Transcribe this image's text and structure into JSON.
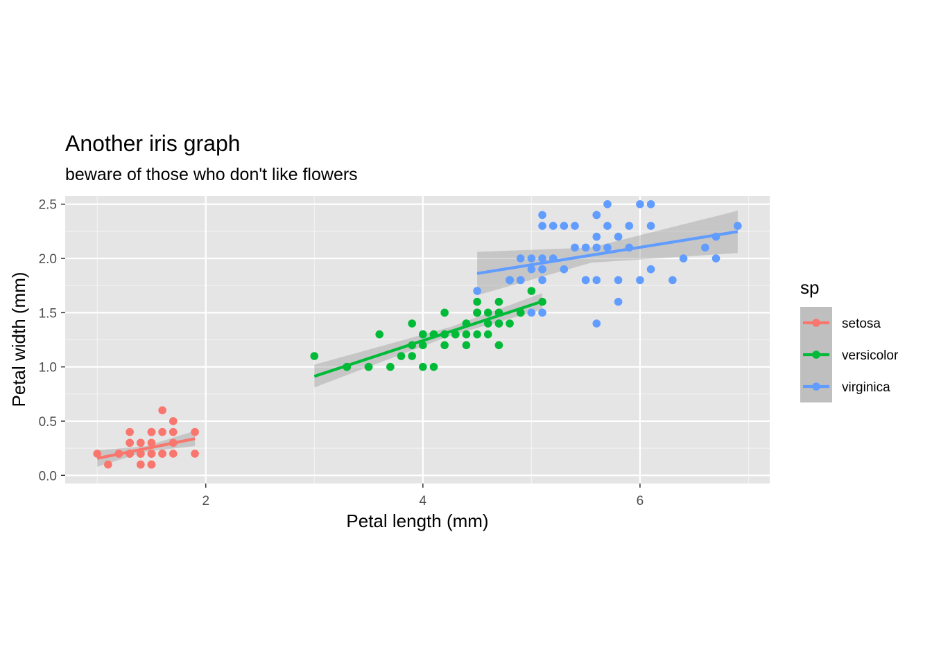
{
  "chart_data": {
    "type": "scatter",
    "title": "Another iris graph",
    "subtitle": "beware of those who don't like flowers",
    "xlabel": "Petal length (mm)",
    "ylabel": "Petal width (mm)",
    "xlim": [
      0.705,
      7.195
    ],
    "ylim": [
      -0.075,
      2.575
    ],
    "x_major_ticks": [
      2,
      4,
      6
    ],
    "x_minor_ticks": [
      1,
      3,
      5,
      7
    ],
    "y_major_ticks": [
      0.0,
      0.5,
      1.0,
      1.5,
      2.0,
      2.5
    ],
    "y_minor_ticks": [
      0.25,
      0.75,
      1.25,
      1.75,
      2.25
    ],
    "x_tick_labels": [
      "2",
      "4",
      "6"
    ],
    "y_tick_labels": [
      "0.0",
      "0.5",
      "1.0",
      "1.5",
      "2.0",
      "2.5"
    ],
    "grid": true,
    "background": "#e5e5e5",
    "legend": {
      "title": "sp",
      "position": "right"
    },
    "series": [
      {
        "name": "setosa",
        "color": "#f8766d",
        "points": [
          [
            1.4,
            0.2
          ],
          [
            1.4,
            0.2
          ],
          [
            1.3,
            0.2
          ],
          [
            1.5,
            0.2
          ],
          [
            1.4,
            0.2
          ],
          [
            1.7,
            0.4
          ],
          [
            1.4,
            0.3
          ],
          [
            1.5,
            0.2
          ],
          [
            1.4,
            0.2
          ],
          [
            1.5,
            0.1
          ],
          [
            1.5,
            0.2
          ],
          [
            1.6,
            0.2
          ],
          [
            1.4,
            0.1
          ],
          [
            1.1,
            0.1
          ],
          [
            1.2,
            0.2
          ],
          [
            1.5,
            0.4
          ],
          [
            1.3,
            0.4
          ],
          [
            1.4,
            0.3
          ],
          [
            1.7,
            0.3
          ],
          [
            1.5,
            0.3
          ],
          [
            1.7,
            0.2
          ],
          [
            1.5,
            0.4
          ],
          [
            1.0,
            0.2
          ],
          [
            1.7,
            0.5
          ],
          [
            1.9,
            0.2
          ],
          [
            1.6,
            0.2
          ],
          [
            1.6,
            0.4
          ],
          [
            1.5,
            0.2
          ],
          [
            1.4,
            0.2
          ],
          [
            1.6,
            0.2
          ],
          [
            1.6,
            0.2
          ],
          [
            1.5,
            0.4
          ],
          [
            1.5,
            0.1
          ],
          [
            1.4,
            0.2
          ],
          [
            1.5,
            0.2
          ],
          [
            1.2,
            0.2
          ],
          [
            1.3,
            0.2
          ],
          [
            1.4,
            0.1
          ],
          [
            1.3,
            0.2
          ],
          [
            1.5,
            0.2
          ],
          [
            1.3,
            0.3
          ],
          [
            1.3,
            0.3
          ],
          [
            1.3,
            0.2
          ],
          [
            1.6,
            0.6
          ],
          [
            1.9,
            0.4
          ],
          [
            1.4,
            0.3
          ],
          [
            1.6,
            0.2
          ],
          [
            1.4,
            0.2
          ],
          [
            1.5,
            0.2
          ],
          [
            1.4,
            0.2
          ]
        ],
        "fit": {
          "x": [
            1.0,
            1.9
          ],
          "y": [
            0.157,
            0.338
          ]
        },
        "ci": {
          "x": [
            1.0,
            1.45,
            1.9
          ],
          "lower": [
            0.08,
            0.22,
            0.27
          ],
          "upper": [
            0.23,
            0.27,
            0.41
          ]
        }
      },
      {
        "name": "versicolor",
        "color": "#00ba38",
        "points": [
          [
            4.7,
            1.4
          ],
          [
            4.5,
            1.5
          ],
          [
            4.9,
            1.5
          ],
          [
            4.0,
            1.3
          ],
          [
            4.6,
            1.5
          ],
          [
            4.5,
            1.3
          ],
          [
            4.7,
            1.6
          ],
          [
            3.3,
            1.0
          ],
          [
            4.6,
            1.3
          ],
          [
            3.9,
            1.4
          ],
          [
            3.5,
            1.0
          ],
          [
            4.2,
            1.5
          ],
          [
            4.0,
            1.0
          ],
          [
            4.7,
            1.4
          ],
          [
            3.6,
            1.3
          ],
          [
            4.4,
            1.4
          ],
          [
            4.5,
            1.5
          ],
          [
            4.1,
            1.0
          ],
          [
            4.5,
            1.5
          ],
          [
            3.9,
            1.1
          ],
          [
            4.8,
            1.8
          ],
          [
            4.0,
            1.3
          ],
          [
            4.9,
            1.5
          ],
          [
            4.7,
            1.2
          ],
          [
            4.3,
            1.3
          ],
          [
            4.4,
            1.4
          ],
          [
            4.8,
            1.4
          ],
          [
            5.0,
            1.7
          ],
          [
            4.5,
            1.5
          ],
          [
            3.5,
            1.0
          ],
          [
            3.8,
            1.1
          ],
          [
            3.7,
            1.0
          ],
          [
            3.9,
            1.2
          ],
          [
            5.1,
            1.6
          ],
          [
            4.5,
            1.5
          ],
          [
            4.5,
            1.6
          ],
          [
            4.7,
            1.5
          ],
          [
            4.4,
            1.3
          ],
          [
            4.1,
            1.3
          ],
          [
            4.0,
            1.3
          ],
          [
            4.4,
            1.2
          ],
          [
            4.6,
            1.4
          ],
          [
            4.0,
            1.2
          ],
          [
            3.3,
            1.0
          ],
          [
            4.2,
            1.3
          ],
          [
            4.2,
            1.2
          ],
          [
            4.2,
            1.3
          ],
          [
            4.3,
            1.3
          ],
          [
            3.0,
            1.1
          ],
          [
            4.1,
            1.3
          ]
        ],
        "fit": {
          "x": [
            3.0,
            5.1
          ],
          "y": [
            0.913,
            1.604
          ]
        },
        "ci": {
          "x": [
            3.0,
            4.26,
            5.1
          ],
          "lower": [
            0.81,
            1.29,
            1.53
          ],
          "upper": [
            1.02,
            1.37,
            1.68
          ]
        }
      },
      {
        "name": "virginica",
        "color": "#619cff",
        "points": [
          [
            6.0,
            2.5
          ],
          [
            5.1,
            1.9
          ],
          [
            5.9,
            2.1
          ],
          [
            5.6,
            1.8
          ],
          [
            5.8,
            2.2
          ],
          [
            6.6,
            2.1
          ],
          [
            4.5,
            1.7
          ],
          [
            6.3,
            1.8
          ],
          [
            5.8,
            1.8
          ],
          [
            6.1,
            2.5
          ],
          [
            5.1,
            2.0
          ],
          [
            5.3,
            1.9
          ],
          [
            5.5,
            2.1
          ],
          [
            5.0,
            2.0
          ],
          [
            5.1,
            2.4
          ],
          [
            5.3,
            2.3
          ],
          [
            5.5,
            1.8
          ],
          [
            6.7,
            2.2
          ],
          [
            6.9,
            2.3
          ],
          [
            5.0,
            1.5
          ],
          [
            5.7,
            2.3
          ],
          [
            4.9,
            2.0
          ],
          [
            6.7,
            2.0
          ],
          [
            4.9,
            1.8
          ],
          [
            5.7,
            2.1
          ],
          [
            6.0,
            1.8
          ],
          [
            4.8,
            1.8
          ],
          [
            4.9,
            1.8
          ],
          [
            5.6,
            2.1
          ],
          [
            5.8,
            1.6
          ],
          [
            6.1,
            1.9
          ],
          [
            6.4,
            2.0
          ],
          [
            5.6,
            2.2
          ],
          [
            5.1,
            1.5
          ],
          [
            5.6,
            1.4
          ],
          [
            6.1,
            2.3
          ],
          [
            5.6,
            2.4
          ],
          [
            5.5,
            1.8
          ],
          [
            4.8,
            1.8
          ],
          [
            5.4,
            2.1
          ],
          [
            5.6,
            2.4
          ],
          [
            5.1,
            2.3
          ],
          [
            5.1,
            1.9
          ],
          [
            5.9,
            2.3
          ],
          [
            5.7,
            2.5
          ],
          [
            5.2,
            2.3
          ],
          [
            5.0,
            1.9
          ],
          [
            5.2,
            2.0
          ],
          [
            5.4,
            2.3
          ],
          [
            5.1,
            1.8
          ]
        ],
        "fit": {
          "x": [
            4.5,
            6.9
          ],
          "y": [
            1.861,
            2.247
          ]
        },
        "ci": {
          "x": [
            4.5,
            5.55,
            6.9
          ],
          "lower": [
            1.66,
            1.96,
            2.05
          ],
          "upper": [
            2.06,
            2.1,
            2.44
          ]
        }
      }
    ]
  }
}
